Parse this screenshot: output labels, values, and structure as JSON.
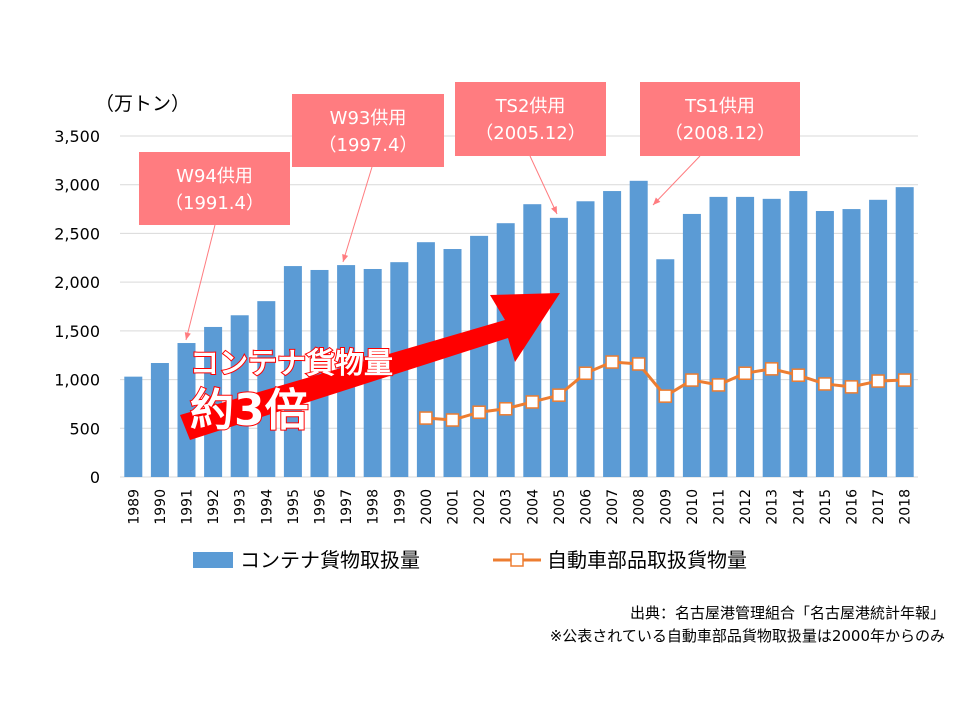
{
  "chart_data": {
    "type": "bar",
    "unit_label": "（万トン）",
    "ylim": [
      0,
      3500
    ],
    "yticks": [
      "0",
      "500",
      "1,000",
      "1,500",
      "2,000",
      "2,500",
      "3,000",
      "3,500"
    ],
    "grid": true,
    "legend_placement": "bottom",
    "categories": [
      "1989",
      "1990",
      "1991",
      "1992",
      "1993",
      "1994",
      "1995",
      "1996",
      "1997",
      "1998",
      "1999",
      "2000",
      "2001",
      "2002",
      "2003",
      "2004",
      "2005",
      "2006",
      "2007",
      "2008",
      "2009",
      "2010",
      "2011",
      "2012",
      "2013",
      "2014",
      "2015",
      "2016",
      "2017",
      "2018"
    ],
    "series": [
      {
        "name": "コンテナ貨物取扱量",
        "type": "bar",
        "color": "#5b9bd5",
        "values": [
          1030,
          1170,
          1375,
          1540,
          1660,
          1805,
          2165,
          2125,
          2175,
          2135,
          2205,
          2410,
          2340,
          2475,
          2605,
          2800,
          2660,
          2830,
          2935,
          3040,
          2235,
          2700,
          2875,
          2875,
          2855,
          2935,
          2730,
          2750,
          2845,
          2975
        ]
      },
      {
        "name": "自動車部品取扱貨物量",
        "type": "line",
        "color": "#ed7d31",
        "values": [
          null,
          null,
          null,
          null,
          null,
          null,
          null,
          null,
          null,
          null,
          null,
          605,
          585,
          665,
          700,
          770,
          840,
          1065,
          1180,
          1160,
          830,
          995,
          945,
          1065,
          1110,
          1045,
          955,
          925,
          985,
          995
        ]
      }
    ],
    "callouts": [
      {
        "line1": "W94供用",
        "line2": "（1991.4）"
      },
      {
        "line1": "W93供用",
        "line2": "（1997.4）"
      },
      {
        "line1": "TS2供用",
        "line2": "（2005.12）"
      },
      {
        "line1": "TS1供用",
        "line2": "（2008.12）"
      }
    ],
    "callout_color": "#ff7c80",
    "emphasis": {
      "line1": "コンテナ貨物量",
      "line2": "約3倍",
      "color": "#ff0000"
    }
  },
  "source": {
    "line1": "出典：名古屋港管理組合「名古屋港統計年報」",
    "line2": "※公表されている自動車部品貨物取扱量は2000年からのみ"
  }
}
